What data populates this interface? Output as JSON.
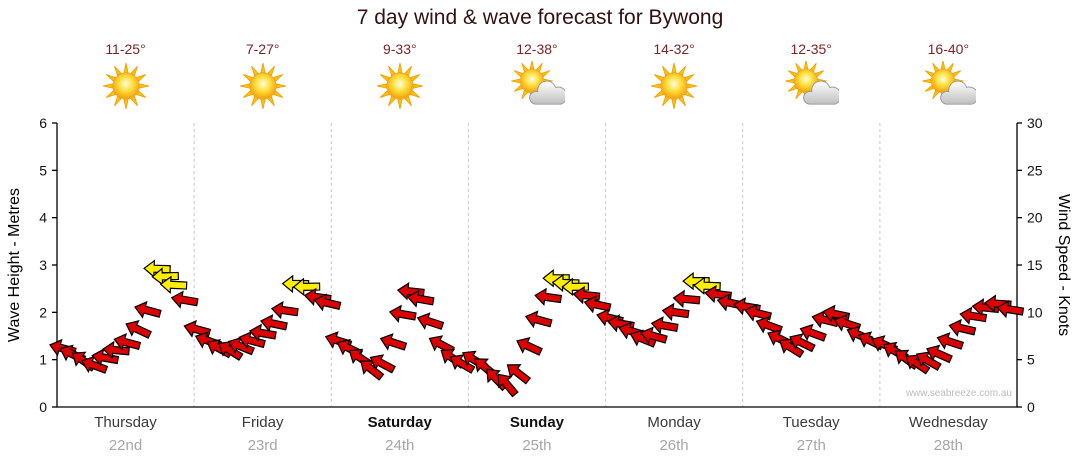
{
  "title": "7 day wind & wave forecast for Bywong",
  "watermark": "www.seabreeze.com.au",
  "colors": {
    "arrow_red": "#dd0000",
    "arrow_yellow": "#ffee00",
    "arrow_outline": "#000000",
    "temp_text": "#7c2424",
    "title_text": "#331111",
    "grid": "#c9c9c9",
    "axis": "#000000",
    "date_text": "#a6a6a6"
  },
  "days": [
    {
      "name": "Thursday",
      "date": "22nd",
      "temp": "11-25°",
      "icon": "sun",
      "bold": false
    },
    {
      "name": "Friday",
      "date": "23rd",
      "temp": "7-27°",
      "icon": "sun",
      "bold": false
    },
    {
      "name": "Saturday",
      "date": "24th",
      "temp": "9-33°",
      "icon": "sun",
      "bold": true
    },
    {
      "name": "Sunday",
      "date": "25th",
      "temp": "12-38°",
      "icon": "sun-cloud",
      "bold": true
    },
    {
      "name": "Monday",
      "date": "26th",
      "temp": "14-32°",
      "icon": "sun",
      "bold": false
    },
    {
      "name": "Tuesday",
      "date": "27th",
      "temp": "12-35°",
      "icon": "sun-cloud",
      "bold": false
    },
    {
      "name": "Wednesday",
      "date": "28th",
      "temp": "16-40°",
      "icon": "sun-cloud",
      "bold": false
    }
  ],
  "chart_data": {
    "type": "scatter",
    "subtype": "wind-direction-arrows",
    "title": "7 day wind & wave forecast for Bywong",
    "x_axis": {
      "unit": "days",
      "categories": [
        "Thursday",
        "Friday",
        "Saturday",
        "Sunday",
        "Monday",
        "Tuesday",
        "Wednesday"
      ]
    },
    "y_left": {
      "label": "Wave Height - Metres",
      "range": [
        0,
        6
      ],
      "ticks": [
        0,
        1,
        2,
        3,
        4,
        5,
        6
      ]
    },
    "y_right": {
      "label": "Wind Speed - Knots",
      "range": [
        0,
        30
      ],
      "ticks": [
        0,
        5,
        10,
        15,
        20,
        25,
        30
      ]
    },
    "grid": "vertical dashed separators at each day boundary",
    "legend": "none",
    "point_format": [
      "x_in_days",
      "wind_speed_knots",
      "arrow_rotation_deg_0_is_right_clockwise",
      "color r=red y=yellow"
    ],
    "points": [
      [
        0.04,
        6.2,
        195,
        "r"
      ],
      [
        0.11,
        5.6,
        205,
        "r"
      ],
      [
        0.19,
        4.9,
        215,
        "r"
      ],
      [
        0.27,
        4.4,
        200,
        "r"
      ],
      [
        0.35,
        5.2,
        190,
        "r"
      ],
      [
        0.43,
        6.0,
        185,
        "r"
      ],
      [
        0.51,
        6.8,
        195,
        "r"
      ],
      [
        0.59,
        8.2,
        205,
        "r"
      ],
      [
        0.66,
        10.2,
        195,
        "r"
      ],
      [
        0.73,
        14.6,
        182,
        "y"
      ],
      [
        0.79,
        13.8,
        178,
        "y"
      ],
      [
        0.85,
        12.9,
        183,
        "y"
      ],
      [
        0.93,
        11.3,
        190,
        "r"
      ],
      [
        1.02,
        8.2,
        195,
        "r"
      ],
      [
        1.1,
        7.0,
        200,
        "r"
      ],
      [
        1.18,
        6.2,
        208,
        "r"
      ],
      [
        1.26,
        6.0,
        212,
        "r"
      ],
      [
        1.34,
        6.4,
        202,
        "r"
      ],
      [
        1.42,
        7.0,
        195,
        "r"
      ],
      [
        1.5,
        7.8,
        190,
        "r"
      ],
      [
        1.58,
        8.8,
        192,
        "r"
      ],
      [
        1.66,
        10.2,
        188,
        "r"
      ],
      [
        1.74,
        13.0,
        181,
        "y"
      ],
      [
        1.82,
        12.7,
        179,
        "y"
      ],
      [
        1.9,
        11.6,
        188,
        "r"
      ],
      [
        1.97,
        11.0,
        193,
        "r"
      ],
      [
        2.05,
        7.0,
        198,
        "r"
      ],
      [
        2.13,
        6.2,
        206,
        "r"
      ],
      [
        2.21,
        5.2,
        214,
        "r"
      ],
      [
        2.29,
        4.0,
        218,
        "r"
      ],
      [
        2.37,
        4.6,
        208,
        "r"
      ],
      [
        2.45,
        6.8,
        198,
        "r"
      ],
      [
        2.52,
        9.8,
        190,
        "r"
      ],
      [
        2.58,
        12.2,
        186,
        "r"
      ],
      [
        2.65,
        11.4,
        190,
        "r"
      ],
      [
        2.72,
        9.0,
        198,
        "r"
      ],
      [
        2.8,
        6.6,
        208,
        "r"
      ],
      [
        2.88,
        5.2,
        214,
        "r"
      ],
      [
        2.95,
        4.6,
        210,
        "r"
      ],
      [
        3.04,
        5.0,
        212,
        "r"
      ],
      [
        3.12,
        4.2,
        220,
        "r"
      ],
      [
        3.2,
        3.0,
        226,
        "r"
      ],
      [
        3.28,
        2.4,
        230,
        "r"
      ],
      [
        3.36,
        3.6,
        218,
        "r"
      ],
      [
        3.44,
        6.4,
        205,
        "r"
      ],
      [
        3.51,
        9.2,
        195,
        "r"
      ],
      [
        3.58,
        11.6,
        188,
        "r"
      ],
      [
        3.64,
        13.6,
        180,
        "y"
      ],
      [
        3.71,
        13.1,
        182,
        "y"
      ],
      [
        3.78,
        12.7,
        179,
        "y"
      ],
      [
        3.86,
        11.8,
        186,
        "r"
      ],
      [
        3.94,
        10.8,
        192,
        "r"
      ],
      [
        4.03,
        9.4,
        194,
        "r"
      ],
      [
        4.11,
        8.8,
        190,
        "r"
      ],
      [
        4.19,
        8.0,
        196,
        "r"
      ],
      [
        4.27,
        7.2,
        202,
        "r"
      ],
      [
        4.35,
        7.5,
        196,
        "r"
      ],
      [
        4.43,
        8.6,
        190,
        "r"
      ],
      [
        4.51,
        10.0,
        188,
        "r"
      ],
      [
        4.59,
        11.4,
        185,
        "r"
      ],
      [
        4.66,
        13.3,
        180,
        "y"
      ],
      [
        4.74,
        12.8,
        182,
        "y"
      ],
      [
        4.82,
        11.9,
        187,
        "r"
      ],
      [
        4.91,
        11.0,
        192,
        "r"
      ],
      [
        5.03,
        10.6,
        190,
        "r"
      ],
      [
        5.11,
        9.9,
        194,
        "r"
      ],
      [
        5.19,
        8.6,
        200,
        "r"
      ],
      [
        5.27,
        7.2,
        206,
        "r"
      ],
      [
        5.35,
        6.3,
        212,
        "r"
      ],
      [
        5.43,
        6.8,
        206,
        "r"
      ],
      [
        5.51,
        7.8,
        200,
        "r"
      ],
      [
        5.6,
        9.2,
        194,
        "r"
      ],
      [
        5.68,
        9.8,
        192,
        "r"
      ],
      [
        5.76,
        8.8,
        198,
        "r"
      ],
      [
        5.85,
        7.6,
        204,
        "r"
      ],
      [
        5.93,
        7.0,
        206,
        "r"
      ],
      [
        6.03,
        6.6,
        204,
        "r"
      ],
      [
        6.11,
        5.9,
        210,
        "r"
      ],
      [
        6.19,
        5.1,
        216,
        "r"
      ],
      [
        6.27,
        4.6,
        214,
        "r"
      ],
      [
        6.35,
        4.9,
        210,
        "r"
      ],
      [
        6.43,
        5.6,
        204,
        "r"
      ],
      [
        6.51,
        6.9,
        198,
        "r"
      ],
      [
        6.6,
        8.3,
        193,
        "r"
      ],
      [
        6.68,
        9.6,
        189,
        "r"
      ],
      [
        6.77,
        10.5,
        186,
        "r"
      ],
      [
        6.86,
        10.9,
        184,
        "r"
      ],
      [
        6.95,
        10.3,
        189,
        "r"
      ]
    ]
  }
}
